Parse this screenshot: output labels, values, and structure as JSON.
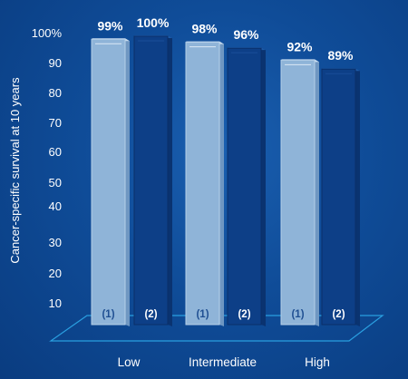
{
  "chart_data": {
    "type": "bar",
    "ylabel": "Cancer-specific survival at 10 years",
    "categories": [
      "Low",
      "Intermediate",
      "High"
    ],
    "yticks": [
      "100%",
      "90",
      "80",
      "70",
      "60",
      "50",
      "40",
      "30",
      "20",
      "10"
    ],
    "ylim": [
      0,
      100
    ],
    "series": [
      {
        "name": "(1)",
        "values": [
          99,
          98,
          92
        ],
        "labels": [
          "99%",
          "98%",
          "92%"
        ]
      },
      {
        "name": "(2)",
        "values": [
          100,
          96,
          89
        ],
        "labels": [
          "100%",
          "96%",
          "89%"
        ]
      }
    ],
    "colors": {
      "background": "#0f4c98",
      "series1": "#8fb4d8",
      "series2": "#0d3f87",
      "floor_line": "#2a9fe0"
    },
    "grid": false,
    "legend": "none"
  }
}
